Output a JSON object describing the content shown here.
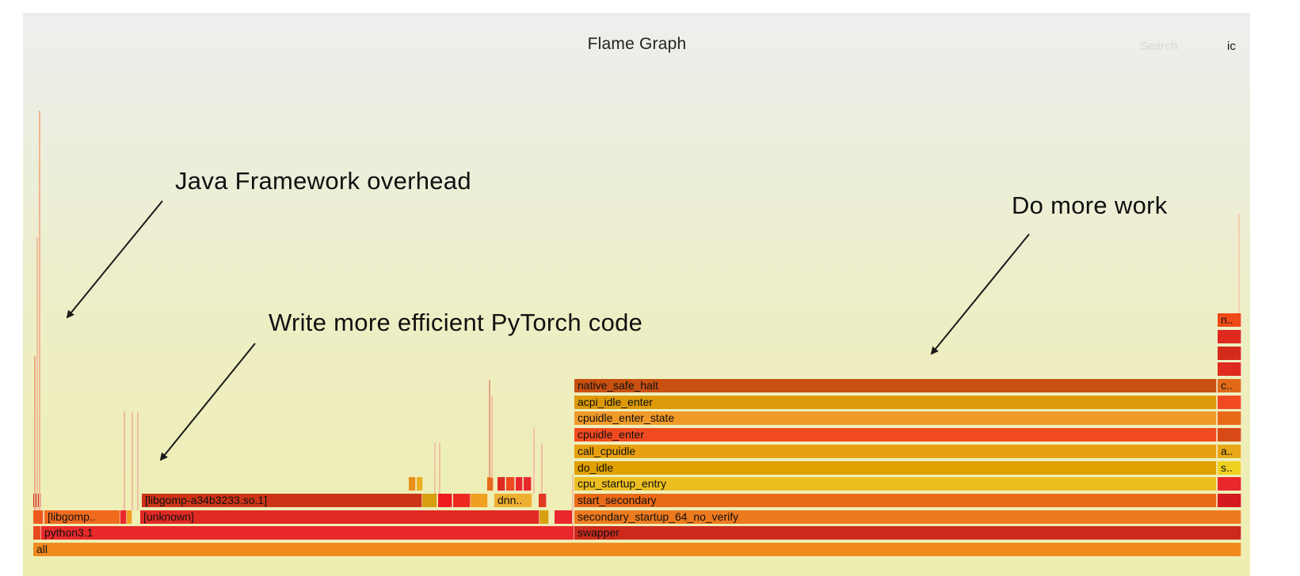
{
  "header": {
    "title": "Flame Graph",
    "search_label": "Search",
    "ic_label": "ic"
  },
  "annotations": {
    "java_overhead": "Java Framework overhead",
    "pytorch": "Write more efficient PyTorch code",
    "more_work": "Do more work"
  },
  "colors": {
    "red": "#e8282a",
    "red_dark": "#cc3418",
    "orange": "#ee7a1e",
    "orange_light": "#f0a020",
    "amber": "#e0a000",
    "yellow": "#ecbe20",
    "red_orange": "#f24a20",
    "rust": "#c85010"
  },
  "frames": {
    "all": "all",
    "python": "python3.1",
    "libgomp_short": "[libgomp..",
    "unknown": "[unknown]",
    "libgomp_full": "[libgomp-a34b3233.so.1]",
    "dnn": "dnn..",
    "swapper": "swapper",
    "secondary_startup": "secondary_startup_64_no_verify",
    "start_secondary": "start_secondary",
    "cpu_startup_entry": "cpu_startup_entry",
    "do_idle": "do_idle",
    "call_cpuidle": "call_cpuidle",
    "cpuidle_enter": "cpuidle_enter",
    "cpuidle_enter_state": "cpuidle_enter_state",
    "acpi_idle_enter": "acpi_idle_enter",
    "native_safe_halt": "native_safe_halt",
    "right_s": "s..",
    "right_a": "a..",
    "right_c": "c..",
    "right_n": "n.."
  }
}
